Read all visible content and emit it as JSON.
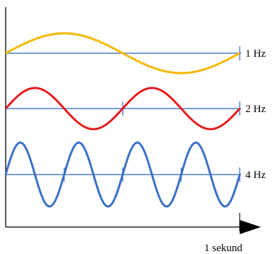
{
  "diagram": {
    "waves": [
      {
        "frequency_hz": 1,
        "label": "1 Hz",
        "color": "#F5B800",
        "phase_direction": "up"
      },
      {
        "frequency_hz": 2,
        "label": "2 Hz",
        "color": "#E31A1C",
        "phase_direction": "up"
      },
      {
        "frequency_hz": 4,
        "label": "4 Hz",
        "color": "#3B6FC7",
        "phase_direction": "up"
      }
    ],
    "baseline_color": "#4A7BD0",
    "axis_color": "#000000",
    "time_label": "1 sekund"
  }
}
